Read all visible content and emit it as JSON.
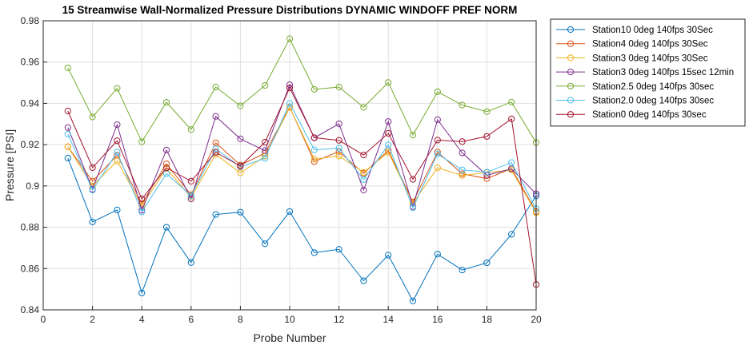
{
  "chart_data": {
    "type": "line",
    "title": "15 Streamwise Wall-Normalized Pressure Distributions DYNAMIC WINDOFF PREF NORM",
    "xlabel": "Probe Number",
    "ylabel": "Pressure [PSI]",
    "xlim": [
      0,
      20
    ],
    "ylim": [
      0.84,
      0.98
    ],
    "xticks": [
      "0",
      "2",
      "4",
      "6",
      "8",
      "10",
      "12",
      "14",
      "16",
      "18",
      "20"
    ],
    "yticks": [
      "0.84",
      "0.86",
      "0.88",
      "0.9",
      "0.92",
      "0.94",
      "0.96",
      "0.98"
    ],
    "grid": true,
    "legend_position": "outside-top-right",
    "x": [
      1,
      2,
      3,
      4,
      5,
      6,
      7,
      8,
      9,
      10,
      11,
      12,
      13,
      14,
      15,
      16,
      17,
      18,
      19,
      20
    ],
    "series": [
      {
        "name": "Station10 0deg 140fps 30Sec",
        "color": "#0072BD",
        "values": [
          0.9135,
          0.8826,
          0.8884,
          0.8482,
          0.88,
          0.8629,
          0.8862,
          0.8873,
          0.872,
          0.8876,
          0.8677,
          0.8693,
          0.8541,
          0.8665,
          0.8443,
          0.867,
          0.8593,
          0.8628,
          0.8766,
          0.8952
        ]
      },
      {
        "name": "Station4 0deg 140fps 30Sec",
        "color": "#D95319",
        "values": [
          0.919,
          0.9023,
          0.9149,
          0.8915,
          0.9107,
          0.8957,
          0.9209,
          0.9101,
          0.9159,
          0.9382,
          0.9118,
          0.9167,
          0.9061,
          0.9172,
          0.8922,
          0.9164,
          0.9059,
          0.9036,
          0.9084,
          0.8876
        ]
      },
      {
        "name": "Station3 0deg 140fps 30Sec",
        "color": "#EDB120",
        "values": [
          0.919,
          0.9,
          0.9121,
          0.8905,
          0.9084,
          0.8945,
          0.9153,
          0.9063,
          0.9144,
          0.938,
          0.913,
          0.9145,
          0.9066,
          0.9163,
          0.8917,
          0.9088,
          0.9051,
          0.9065,
          0.9077,
          0.887
        ]
      },
      {
        "name": "Station3 0deg 140fps 15sec 12min",
        "color": "#7E2F8E",
        "values": [
          0.9283,
          0.8984,
          0.9297,
          0.8882,
          0.9174,
          0.8937,
          0.9337,
          0.9228,
          0.9171,
          0.949,
          0.9233,
          0.9301,
          0.898,
          0.9312,
          0.89,
          0.9321,
          0.916,
          0.9052,
          0.9083,
          0.8962
        ]
      },
      {
        "name": "Station2.5 0deg 140fps 30sec",
        "color": "#77AC30",
        "values": [
          0.9572,
          0.9334,
          0.9473,
          0.9214,
          0.9405,
          0.9273,
          0.9479,
          0.9388,
          0.9487,
          0.9713,
          0.9468,
          0.9479,
          0.9381,
          0.9501,
          0.9247,
          0.9456,
          0.9392,
          0.936,
          0.9406,
          0.921
        ]
      },
      {
        "name": "Station2.0 0deg 140fps 30sec",
        "color": "#4DBEEE",
        "values": [
          0.9251,
          0.898,
          0.9164,
          0.8874,
          0.906,
          0.8953,
          0.918,
          0.9093,
          0.9134,
          0.94,
          0.9175,
          0.9183,
          0.9031,
          0.9199,
          0.8894,
          0.9155,
          0.9078,
          0.9067,
          0.9113,
          0.889
        ]
      },
      {
        "name": "Station0 0deg 140fps 30sec",
        "color": "#A2142F",
        "values": [
          0.9363,
          0.9089,
          0.9219,
          0.8937,
          0.9088,
          0.9023,
          0.9163,
          0.9096,
          0.9212,
          0.9475,
          0.9234,
          0.9221,
          0.915,
          0.9255,
          0.9032,
          0.9222,
          0.9215,
          0.924,
          0.9325,
          0.8523
        ]
      }
    ]
  }
}
